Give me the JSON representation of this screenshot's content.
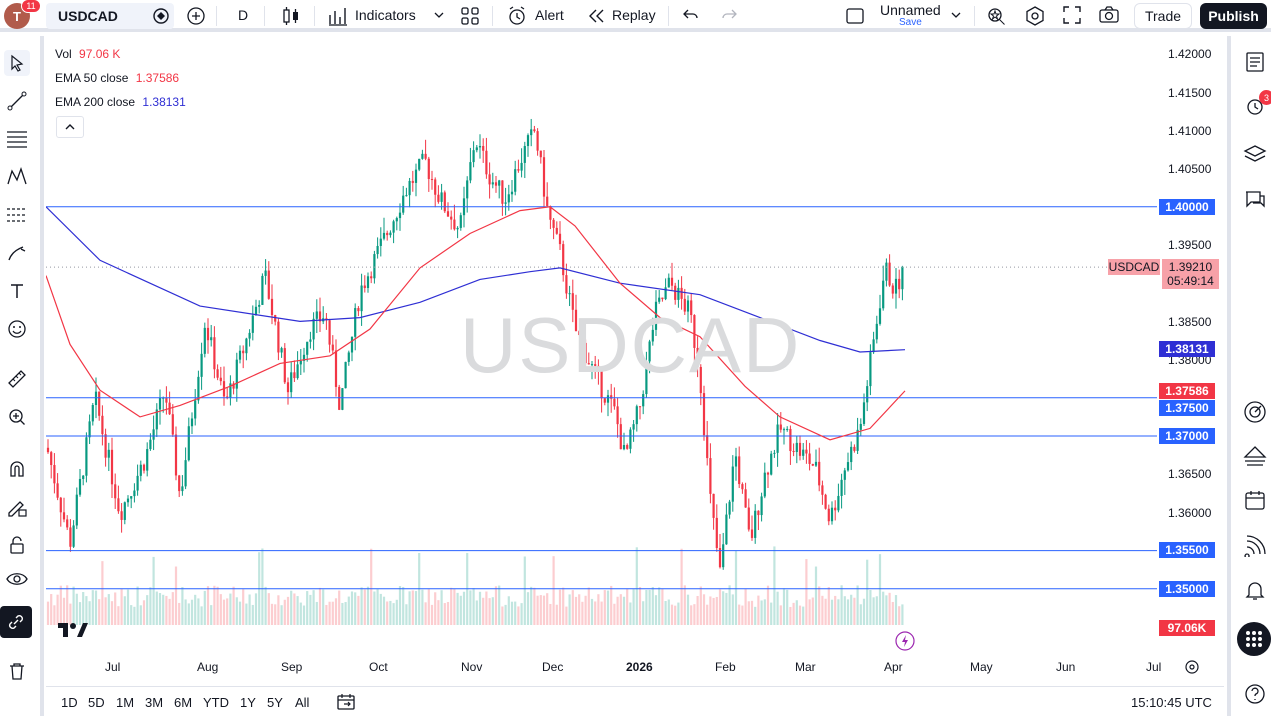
{
  "header": {
    "avatar_letter": "T",
    "notification_count": "11",
    "symbol": "USDCAD",
    "interval": "D",
    "indicators_label": "Indicators",
    "alert_label": "Alert",
    "replay_label": "Replay",
    "layout_name": "Unnamed",
    "layout_status": "Save",
    "trade_label": "Trade",
    "publish_label": "Publish"
  },
  "legend": {
    "vol_label": "Vol",
    "vol_value": "97.06 K",
    "ema50_label": "EMA 50 close",
    "ema50_value": "1.37586",
    "ema200_label": "EMA 200 close",
    "ema200_value": "1.38131",
    "collapse_icon": "chevron-up-icon"
  },
  "watermark": "USDCAD",
  "price_axis": {
    "ticks": [
      "1.42000",
      "1.41500",
      "1.41000",
      "1.40500",
      "1.39500",
      "1.38500",
      "1.38000",
      "1.36500",
      "1.36000"
    ],
    "levels": [
      "1.40000",
      "1.37500",
      "1.37000",
      "1.35500",
      "1.35000"
    ],
    "ema200_tag": "1.38131",
    "ema50_tag": "1.37586",
    "current_symbol": "USDCAD",
    "current_price": "1.39210",
    "countdown": "05:49:14",
    "volume_tag": "97.06K"
  },
  "time_axis": {
    "labels": [
      "Jul",
      "Aug",
      "Sep",
      "Oct",
      "Nov",
      "Dec",
      "2026",
      "Feb",
      "Mar",
      "Apr",
      "May",
      "Jun",
      "Jul"
    ]
  },
  "bottombar": {
    "ranges": [
      "1D",
      "5D",
      "1M",
      "3M",
      "6M",
      "YTD",
      "1Y",
      "5Y",
      "All"
    ],
    "clock": "15:10:45 UTC"
  },
  "right_toolbar": {
    "alerts_badge": "3"
  },
  "colors": {
    "ema50": "#f23645",
    "ema200": "#2f2fd4",
    "level_line": "#2962ff",
    "up_candle": "#089981",
    "down_candle": "#f23645",
    "current_price_tag": "#f7a1a8"
  }
}
